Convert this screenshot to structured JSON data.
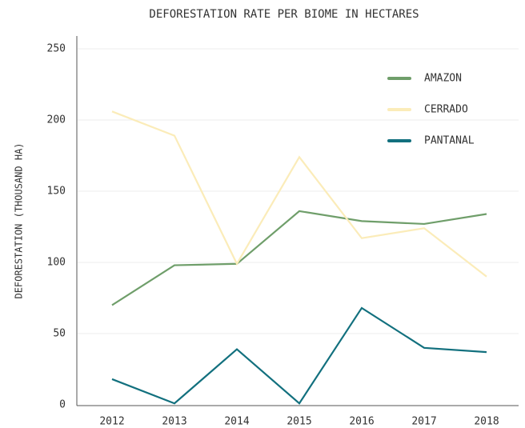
{
  "chart_data": {
    "type": "line",
    "title": "DEFORESTATION RATE PER BIOME IN HECTARES",
    "y_label": "DEFORESTATION (THOUSAND HA)",
    "categories": [
      "2012",
      "2013",
      "2014",
      "2015",
      "2016",
      "2017",
      "2018"
    ],
    "series": [
      {
        "name": "AMAZON",
        "color": "#6f9e6a",
        "values": [
          70,
          98,
          99,
          136,
          129,
          127,
          134
        ]
      },
      {
        "name": "CERRADO",
        "color": "#fbecb9",
        "values": [
          206,
          189,
          99,
          174,
          117,
          124,
          90
        ]
      },
      {
        "name": "PANTANAL",
        "color": "#12707e",
        "values": [
          18,
          1,
          39,
          1,
          68,
          40,
          37
        ]
      }
    ],
    "ylim": [
      0,
      250
    ],
    "yticks": [
      0,
      50,
      100,
      150,
      200,
      250
    ],
    "grid": true,
    "legend": "upper right"
  }
}
